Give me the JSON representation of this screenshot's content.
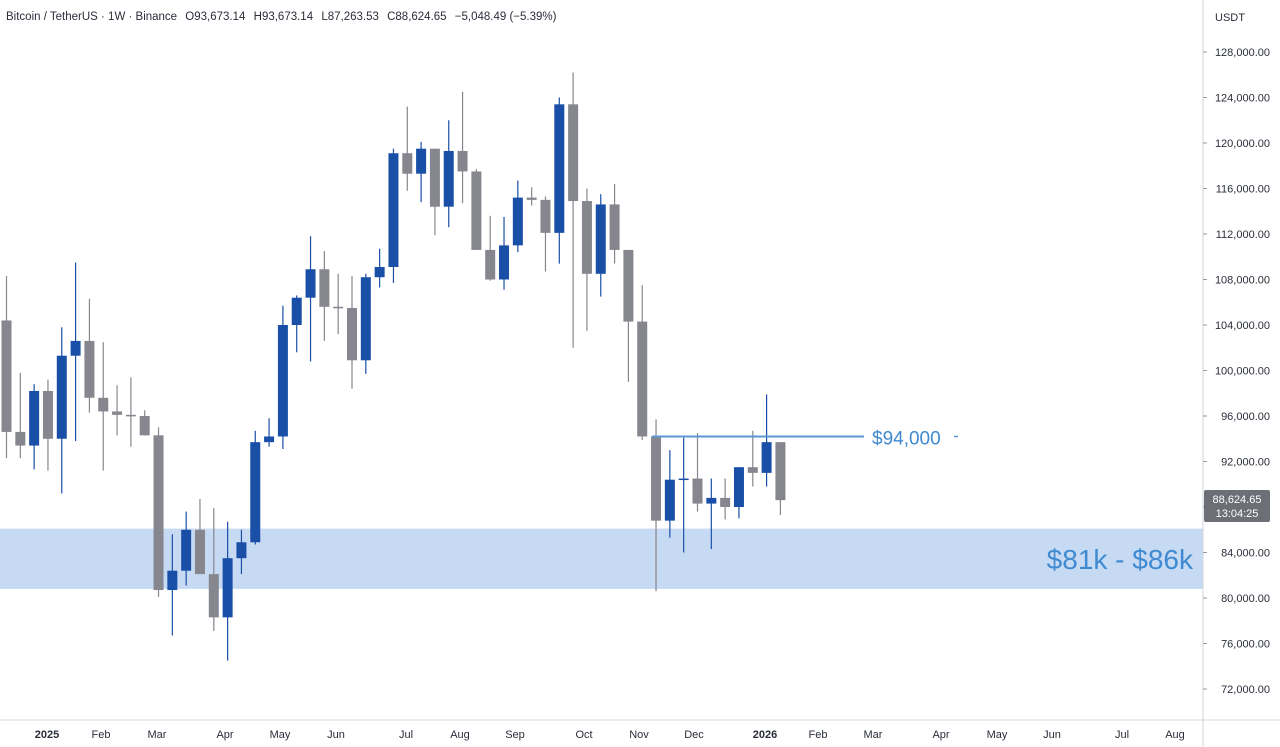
{
  "header": {
    "symbol": "Bitcoin / TetherUS · 1W · Binance",
    "ohlc": [
      {
        "key": "O",
        "value": "93,673.14"
      },
      {
        "key": "H",
        "value": "93,673.14"
      },
      {
        "key": "L",
        "value": "87,263.53"
      },
      {
        "key": "C",
        "value": "88,624.65"
      }
    ],
    "change": "−5,048.49 (−5.39%)"
  },
  "axis": {
    "currency": "USDT"
  },
  "price_badge": {
    "price": "88,624.65",
    "countdown": "13:04:25"
  },
  "colors": {
    "up": "#1a4fa8",
    "down": "#86868e",
    "zone": "#c7daf3",
    "level_line": "#5a97d6",
    "annotation": "#3f8ad0",
    "badge": "#6d6f77"
  },
  "chart_data": {
    "type": "candlestick",
    "interval": "1W",
    "ylim": [
      70000,
      130000
    ],
    "y_ticks": [
      "72,000.00",
      "76,000.00",
      "80,000.00",
      "84,000.00",
      "88,000.00",
      "92,000.00",
      "96,000.00",
      "100,000.00",
      "104,000.00",
      "108,000.00",
      "112,000.00",
      "116,000.00",
      "120,000.00",
      "124,000.00",
      "128,000.00"
    ],
    "x_ticks": [
      "2025",
      "Feb",
      "Mar",
      "Apr",
      "May",
      "Jun",
      "Jul",
      "Aug",
      "Sep",
      "Oct",
      "Nov",
      "Dec",
      "2026",
      "Feb",
      "Mar",
      "Apr",
      "May",
      "Jun",
      "Jul",
      "Aug"
    ],
    "candles": [
      {
        "o": 104400,
        "h": 108300,
        "l": 92300,
        "c": 94600
      },
      {
        "o": 94600,
        "h": 99800,
        "l": 92300,
        "c": 93400
      },
      {
        "o": 93400,
        "h": 98800,
        "l": 91300,
        "c": 98200
      },
      {
        "o": 98200,
        "h": 99200,
        "l": 91200,
        "c": 94000
      },
      {
        "o": 94000,
        "h": 103800,
        "l": 89200,
        "c": 101300
      },
      {
        "o": 101300,
        "h": 109500,
        "l": 93800,
        "c": 102600
      },
      {
        "o": 102600,
        "h": 106300,
        "l": 96300,
        "c": 97600
      },
      {
        "o": 97600,
        "h": 102500,
        "l": 91200,
        "c": 96400
      },
      {
        "o": 96400,
        "h": 98700,
        "l": 94300,
        "c": 96100
      },
      {
        "o": 96100,
        "h": 99400,
        "l": 93300,
        "c": 96000
      },
      {
        "o": 96000,
        "h": 96500,
        "l": 94300,
        "c": 94300
      },
      {
        "o": 94300,
        "h": 95000,
        "l": 80100,
        "c": 80700
      },
      {
        "o": 80700,
        "h": 85600,
        "l": 76700,
        "c": 82400
      },
      {
        "o": 82400,
        "h": 87600,
        "l": 81100,
        "c": 86000
      },
      {
        "o": 86000,
        "h": 88700,
        "l": 82100,
        "c": 82100
      },
      {
        "o": 82100,
        "h": 87900,
        "l": 77100,
        "c": 78300
      },
      {
        "o": 78300,
        "h": 86700,
        "l": 74500,
        "c": 83500
      },
      {
        "o": 83500,
        "h": 86000,
        "l": 82100,
        "c": 84900
      },
      {
        "o": 84900,
        "h": 94700,
        "l": 84700,
        "c": 93700
      },
      {
        "o": 93700,
        "h": 95800,
        "l": 93300,
        "c": 94200
      },
      {
        "o": 94200,
        "h": 105700,
        "l": 93100,
        "c": 104000
      },
      {
        "o": 104000,
        "h": 106600,
        "l": 101600,
        "c": 106400
      },
      {
        "o": 106400,
        "h": 111800,
        "l": 100800,
        "c": 108900
      },
      {
        "o": 108900,
        "h": 110500,
        "l": 102600,
        "c": 105600
      },
      {
        "o": 105600,
        "h": 108500,
        "l": 103200,
        "c": 105500
      },
      {
        "o": 105500,
        "h": 108300,
        "l": 98400,
        "c": 100900
      },
      {
        "o": 100900,
        "h": 108500,
        "l": 99700,
        "c": 108200
      },
      {
        "o": 108200,
        "h": 110700,
        "l": 107300,
        "c": 109100
      },
      {
        "o": 109100,
        "h": 119500,
        "l": 107700,
        "c": 119100
      },
      {
        "o": 119100,
        "h": 123200,
        "l": 115800,
        "c": 117300
      },
      {
        "o": 117300,
        "h": 120100,
        "l": 114800,
        "c": 119500
      },
      {
        "o": 119500,
        "h": 119300,
        "l": 111900,
        "c": 114400
      },
      {
        "o": 114400,
        "h": 122000,
        "l": 112600,
        "c": 119300
      },
      {
        "o": 119300,
        "h": 124500,
        "l": 114700,
        "c": 117500
      },
      {
        "o": 117500,
        "h": 117700,
        "l": 110700,
        "c": 110600
      },
      {
        "o": 110600,
        "h": 113600,
        "l": 107900,
        "c": 108000
      },
      {
        "o": 108000,
        "h": 113500,
        "l": 107100,
        "c": 111000
      },
      {
        "o": 111000,
        "h": 116700,
        "l": 110400,
        "c": 115200
      },
      {
        "o": 115200,
        "h": 116100,
        "l": 114500,
        "c": 115000
      },
      {
        "o": 115000,
        "h": 115300,
        "l": 108700,
        "c": 112100
      },
      {
        "o": 112100,
        "h": 124000,
        "l": 109400,
        "c": 123400
      },
      {
        "o": 123400,
        "h": 126200,
        "l": 102000,
        "c": 114900
      },
      {
        "o": 114900,
        "h": 116000,
        "l": 103500,
        "c": 108500
      },
      {
        "o": 108500,
        "h": 115500,
        "l": 106500,
        "c": 114600
      },
      {
        "o": 114600,
        "h": 116400,
        "l": 109400,
        "c": 110600
      },
      {
        "o": 110600,
        "h": 110600,
        "l": 99000,
        "c": 104300
      },
      {
        "o": 104300,
        "h": 107500,
        "l": 93900,
        "c": 94200
      },
      {
        "o": 94200,
        "h": 95700,
        "l": 80600,
        "c": 86800
      },
      {
        "o": 86800,
        "h": 93000,
        "l": 85300,
        "c": 90400
      },
      {
        "o": 90400,
        "h": 94100,
        "l": 84000,
        "c": 90500
      },
      {
        "o": 90500,
        "h": 94500,
        "l": 87600,
        "c": 88300
      },
      {
        "o": 88300,
        "h": 90500,
        "l": 84300,
        "c": 88800
      },
      {
        "o": 88800,
        "h": 90500,
        "l": 86900,
        "c": 88000
      },
      {
        "o": 88000,
        "h": 91500,
        "l": 87000,
        "c": 91500
      },
      {
        "o": 91500,
        "h": 94700,
        "l": 89800,
        "c": 91000
      },
      {
        "o": 91000,
        "h": 97900,
        "l": 89800,
        "c": 93700
      },
      {
        "o": 93700,
        "h": 93700,
        "l": 87300,
        "c": 88600
      }
    ],
    "zone": {
      "low": 80800,
      "high": 86100,
      "label": "$81k - $86k"
    },
    "level": {
      "price": 94200,
      "label": "$94,000"
    }
  }
}
